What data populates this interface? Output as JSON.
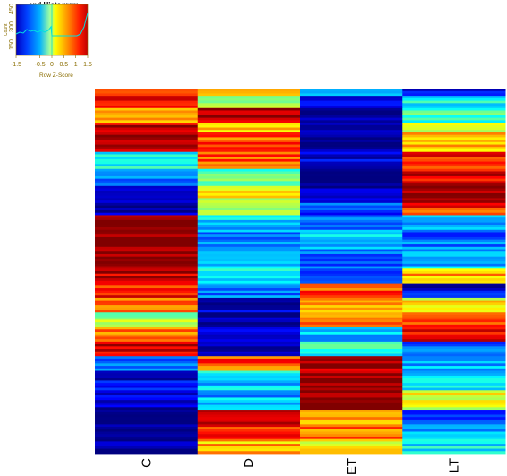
{
  "chart_data": {
    "type": "heatmap",
    "columns": [
      "C",
      "D",
      "ET",
      "LT"
    ],
    "row_count": 150,
    "value_range": [
      -1.5,
      1.5
    ],
    "colorscale": "jet",
    "segments": [
      {
        "from": 0,
        "to": 3,
        "values": [
          0.9,
          0.6,
          -0.4,
          -1.2
        ]
      },
      {
        "from": 3,
        "to": 8,
        "values": [
          1.2,
          0.2,
          -1.3,
          -0.4
        ]
      },
      {
        "from": 8,
        "to": 14,
        "values": [
          0.7,
          1.3,
          -1.4,
          -0.2
        ]
      },
      {
        "from": 14,
        "to": 18,
        "values": [
          1.3,
          0.5,
          -1.4,
          0.3
        ]
      },
      {
        "from": 18,
        "to": 26,
        "values": [
          1.4,
          0.9,
          -1.5,
          0.5
        ]
      },
      {
        "from": 26,
        "to": 33,
        "values": [
          -0.3,
          0.9,
          -1.2,
          1.1
        ]
      },
      {
        "from": 33,
        "to": 40,
        "values": [
          -0.7,
          -0.1,
          -1.4,
          1.2
        ]
      },
      {
        "from": 40,
        "to": 47,
        "values": [
          -1.3,
          0.3,
          -1.4,
          1.3
        ]
      },
      {
        "from": 47,
        "to": 52,
        "values": [
          -1.4,
          0.2,
          -0.9,
          1.0
        ]
      },
      {
        "from": 52,
        "to": 59,
        "values": [
          1.5,
          -0.5,
          -0.7,
          -0.6
        ]
      },
      {
        "from": 59,
        "to": 66,
        "values": [
          1.5,
          -0.8,
          -0.5,
          -0.8
        ]
      },
      {
        "from": 66,
        "to": 74,
        "values": [
          1.4,
          -0.6,
          -0.8,
          -0.6
        ]
      },
      {
        "from": 74,
        "to": 80,
        "values": [
          1.3,
          -0.4,
          -0.9,
          0.6
        ]
      },
      {
        "from": 80,
        "to": 86,
        "values": [
          1.1,
          -0.7,
          0.9,
          -1.2
        ]
      },
      {
        "from": 86,
        "to": 92,
        "values": [
          0.9,
          -1.3,
          0.7,
          0.4
        ]
      },
      {
        "from": 92,
        "to": 98,
        "values": [
          0.1,
          -1.4,
          0.8,
          0.9
        ]
      },
      {
        "from": 98,
        "to": 104,
        "values": [
          0.8,
          -1.2,
          -0.5,
          1.2
        ]
      },
      {
        "from": 104,
        "to": 110,
        "values": [
          1.2,
          -1.4,
          -0.3,
          -0.8
        ]
      },
      {
        "from": 110,
        "to": 116,
        "values": [
          -0.7,
          0.9,
          1.4,
          -0.6
        ]
      },
      {
        "from": 116,
        "to": 124,
        "values": [
          -1.2,
          -0.5,
          1.5,
          -0.4
        ]
      },
      {
        "from": 124,
        "to": 132,
        "values": [
          -1.3,
          -0.6,
          1.4,
          0.3
        ]
      },
      {
        "from": 132,
        "to": 138,
        "values": [
          -1.4,
          1.4,
          0.7,
          -0.9
        ]
      },
      {
        "from": 138,
        "to": 144,
        "values": [
          -1.5,
          1.0,
          0.8,
          -0.6
        ]
      },
      {
        "from": 144,
        "to": 150,
        "values": [
          -1.5,
          0.6,
          0.4,
          -0.4
        ]
      }
    ],
    "color_key": {
      "title": "and Histogram",
      "xlabel": "Row Z-Score",
      "x_ticks": [
        "-1.5",
        "-0.5",
        "0",
        "0.5",
        "1",
        "1.5"
      ],
      "ylabel": "Count",
      "y_ticks": [
        "150",
        "300",
        "450"
      ]
    }
  }
}
